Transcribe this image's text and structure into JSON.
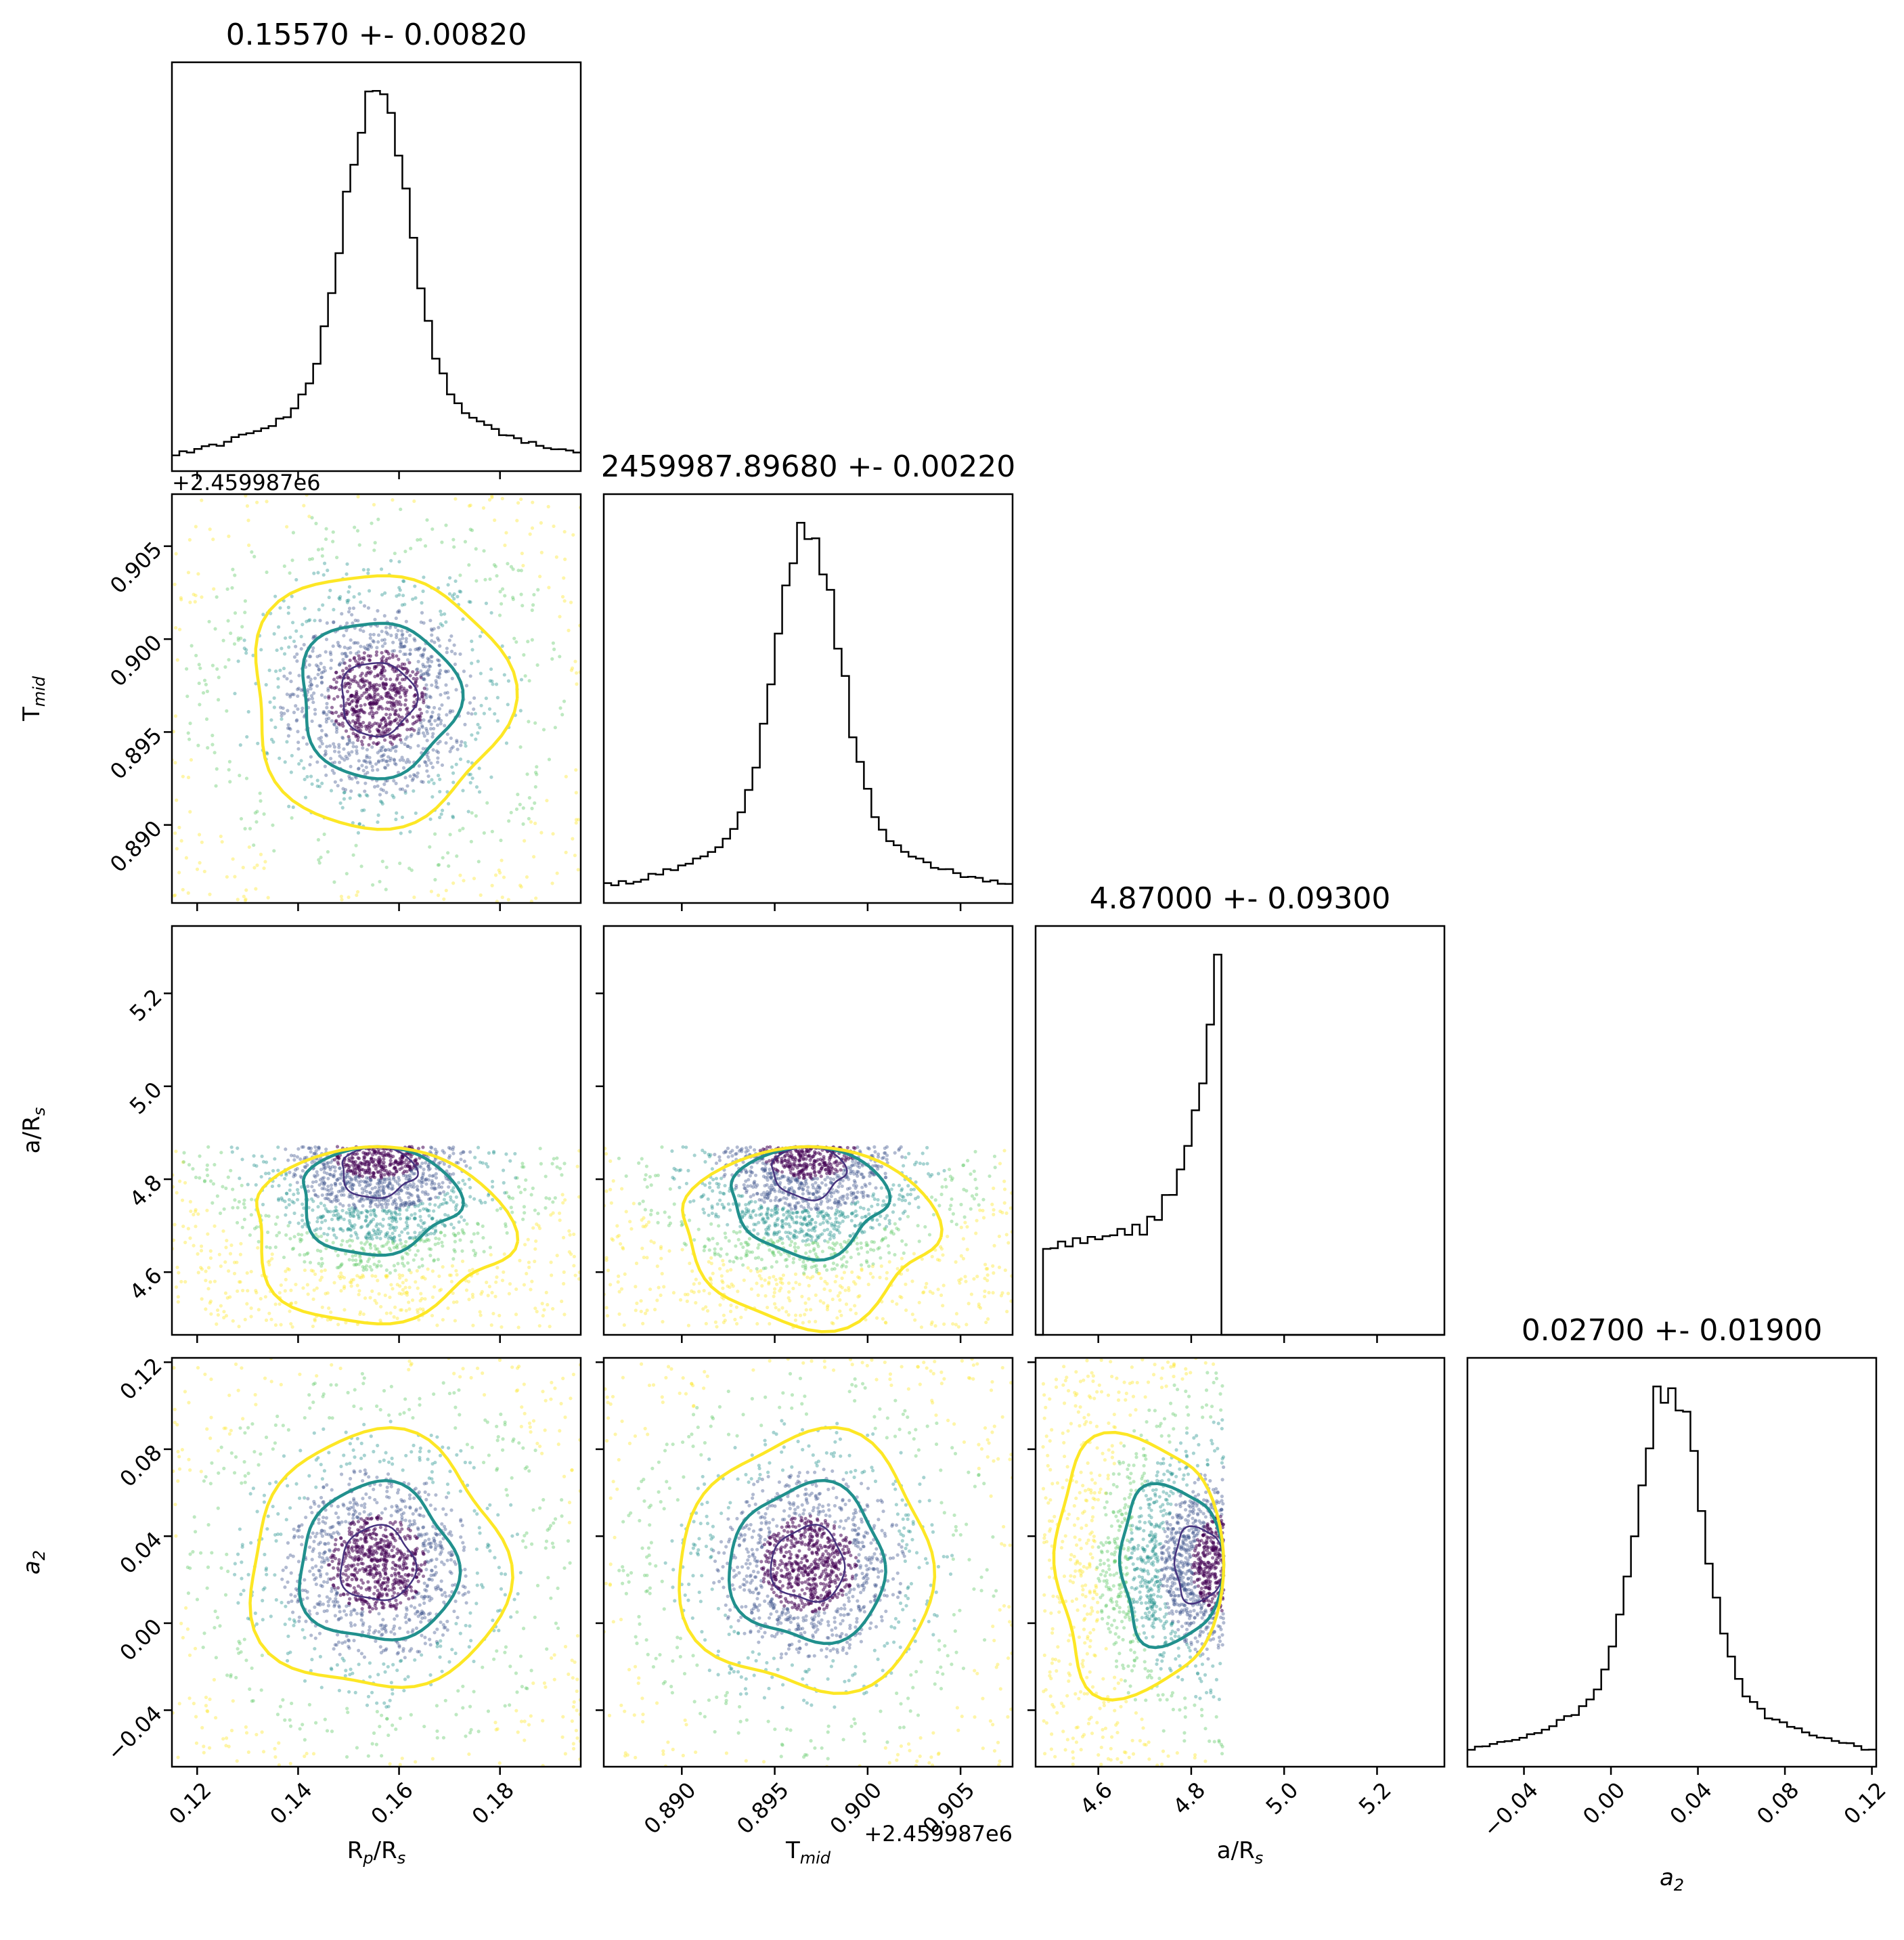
{
  "chart_data": {
    "type": "corner",
    "parameters": [
      {
        "key": "rp",
        "label_main": "R",
        "label_sub": "p",
        "label_rest": "/R",
        "label_sub2": "s",
        "range": [
          0.115,
          0.196
        ],
        "ticks": [
          "0.12",
          "0.14",
          "0.16",
          "0.18"
        ],
        "tick_values": [
          0.12,
          0.14,
          0.16,
          0.18
        ],
        "mean": 0.1557,
        "sigma": 0.0082
      },
      {
        "key": "tmid",
        "label_main": "T",
        "label_sub": "mid",
        "label_rest": "",
        "label_sub2": "",
        "range": [
          0.8858,
          0.9078
        ],
        "ticks": [
          "0.890",
          "0.895",
          "0.900",
          "0.905"
        ],
        "tick_values": [
          0.89,
          0.895,
          0.9,
          0.905
        ],
        "offset": "+2.459987e6",
        "mean": 0.8968,
        "sigma": 0.0022
      },
      {
        "key": "ars",
        "label_main": "a/R",
        "label_sub": "s",
        "label_rest": "",
        "label_sub2": "",
        "range": [
          4.465,
          5.345
        ],
        "ticks": [
          "4.6",
          "4.8",
          "5.0",
          "5.2"
        ],
        "tick_values": [
          4.6,
          4.8,
          5.0,
          5.2
        ],
        "mean": 4.87,
        "sigma": 0.093,
        "upper_bound": 4.87
      },
      {
        "key": "a2",
        "label_main": "a",
        "label_sub": "2",
        "label_rest": "",
        "label_sub2": "",
        "italic": true,
        "range": [
          -0.066,
          0.122
        ],
        "ticks": [
          "−0.04",
          "0.00",
          "0.04",
          "0.08",
          "0.12"
        ],
        "tick_values": [
          -0.04,
          0.0,
          0.04,
          0.08,
          0.12
        ],
        "mean": 0.027,
        "sigma": 0.019
      }
    ],
    "titles": [
      "0.15570 +- 0.00820",
      "2459987.89680 +- 0.00220",
      "4.87000 +- 0.09300",
      "0.02700 +- 0.01900"
    ],
    "tick_offset_label": "+2.459987e6",
    "colors": {
      "histogram": "#000000",
      "contour_inner": "#46327e",
      "contour_mid": "#21908d",
      "contour_outer": "#fde725",
      "scatter_dark": "#440154"
    },
    "grid": false
  }
}
